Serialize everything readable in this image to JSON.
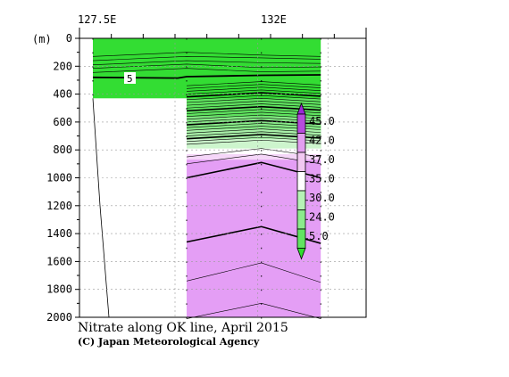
{
  "chart_data": {
    "type": "contour-section",
    "title": "Nitrate along OK line, April 2015",
    "credit": "(C) Japan Meteorological Agency",
    "x_ticks": [
      "127.5E",
      "132E"
    ],
    "xlim": [
      127.5,
      132
    ],
    "y_unit_label": "(m)",
    "y_ticks": [
      "0",
      "200",
      "400",
      "600",
      "800",
      "1000",
      "1200",
      "1400",
      "1600",
      "1800",
      "2000"
    ],
    "y_tick_values": [
      0,
      200,
      400,
      600,
      800,
      1000,
      1200,
      1400,
      1600,
      1800,
      2000
    ],
    "ylim": [
      0,
      2000
    ],
    "y_inverted": true,
    "grid": true,
    "station_x": [
      127.5,
      129.0,
      130.3,
      131.4
    ],
    "contour_label": "5",
    "colorbar": {
      "labels": [
        "45.0",
        "42.0",
        "37.0",
        "35.0",
        "30.0",
        "24.0",
        "5.0"
      ],
      "levels": [
        5.0,
        24.0,
        30.0,
        35.0,
        37.0,
        42.0,
        45.0
      ],
      "colors": [
        "#2fdc2f",
        "#62e462",
        "#8ceb8c",
        "#b6f2b6",
        "#ffffff",
        "#f2c8f2",
        "#e39ef0",
        "#b64cdc",
        "#9a29d6"
      ]
    },
    "fill_colors": {
      "low_nitrate": "#33dd33",
      "high_nitrate": "#e49ef5",
      "bottom_topography": "#ffffff"
    }
  }
}
